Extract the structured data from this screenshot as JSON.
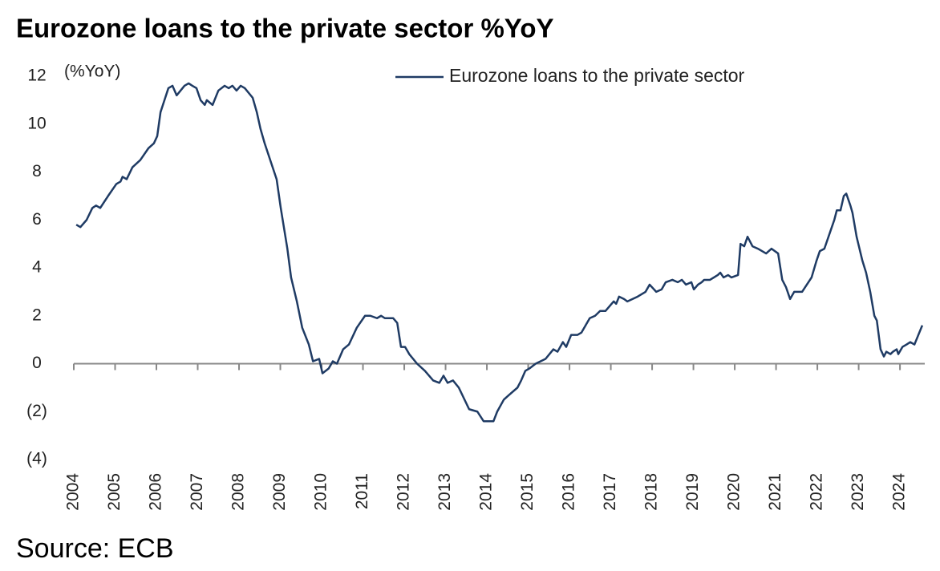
{
  "chart_data": {
    "type": "line",
    "title": "Eurozone loans to the private sector %YoY",
    "y_label": "(%YoY)",
    "source": "Source: ECB",
    "legend": "top-right",
    "xlim": [
      2004,
      2024.6
    ],
    "xticks": [
      2004,
      2005,
      2006,
      2007,
      2008,
      2009,
      2010,
      2011,
      2012,
      2013,
      2014,
      2015,
      2016,
      2017,
      2018,
      2019,
      2020,
      2021,
      2022,
      2023,
      2024
    ],
    "ylim": [
      -4,
      12
    ],
    "yticks": [
      {
        "value": -4,
        "label": "(4)"
      },
      {
        "value": -2,
        "label": "(2)"
      },
      0,
      2,
      4,
      6,
      8,
      10,
      12
    ],
    "grid": false,
    "x": [
      2004.06,
      2004.16,
      2004.31,
      2004.45,
      2004.54,
      2004.64,
      2004.83,
      2005.03,
      2005.13,
      2005.18,
      2005.28,
      2005.42,
      2005.61,
      2005.81,
      2005.94,
      2006.02,
      2006.1,
      2006.29,
      2006.39,
      2006.49,
      2006.68,
      2006.78,
      2006.87,
      2006.97,
      2007.07,
      2007.17,
      2007.22,
      2007.36,
      2007.5,
      2007.65,
      2007.75,
      2007.84,
      2007.94,
      2008.04,
      2008.14,
      2008.33,
      2008.43,
      2008.52,
      2008.62,
      2008.91,
      2009.01,
      2009.17,
      2009.26,
      2009.4,
      2009.53,
      2009.69,
      2009.79,
      2009.94,
      2010.02,
      2010.17,
      2010.27,
      2010.37,
      2010.52,
      2010.66,
      2010.85,
      2011.05,
      2011.18,
      2011.34,
      2011.44,
      2011.53,
      2011.73,
      2011.83,
      2011.92,
      2012.02,
      2012.12,
      2012.31,
      2012.5,
      2012.7,
      2012.85,
      2012.95,
      2013.05,
      2013.18,
      2013.32,
      2013.57,
      2013.77,
      2013.92,
      2014.16,
      2014.25,
      2014.41,
      2014.54,
      2014.74,
      2014.83,
      2014.93,
      2015.03,
      2015.18,
      2015.42,
      2015.61,
      2015.71,
      2015.84,
      2015.92,
      2016.04,
      2016.19,
      2016.29,
      2016.49,
      2016.62,
      2016.74,
      2016.87,
      2017.07,
      2017.13,
      2017.2,
      2017.32,
      2017.4,
      2017.65,
      2017.84,
      2017.94,
      2018.1,
      2018.23,
      2018.33,
      2018.49,
      2018.62,
      2018.72,
      2018.82,
      2018.95,
      2019.01,
      2019.11,
      2019.2,
      2019.26,
      2019.4,
      2019.59,
      2019.65,
      2019.73,
      2019.84,
      2019.92,
      2020.08,
      2020.14,
      2020.23,
      2020.31,
      2020.43,
      2020.56,
      2020.76,
      2020.89,
      2021.05,
      2021.15,
      2021.24,
      2021.34,
      2021.44,
      2021.63,
      2021.86,
      2021.98,
      2022.06,
      2022.17,
      2022.31,
      2022.41,
      2022.47,
      2022.56,
      2022.64,
      2022.7,
      2022.8,
      2022.85,
      2022.95,
      2023.09,
      2023.18,
      2023.28,
      2023.38,
      2023.44,
      2023.53,
      2023.61,
      2023.67,
      2023.77,
      2023.83,
      2023.92,
      2023.96,
      2024.06,
      2024.16,
      2024.25,
      2024.35,
      2024.54
    ],
    "series": [
      {
        "name": "Eurozone loans to the private sector",
        "color": "#1f3b64",
        "values": [
          5.8,
          5.7,
          6.0,
          6.5,
          6.6,
          6.5,
          7.0,
          7.5,
          7.6,
          7.8,
          7.7,
          8.2,
          8.5,
          9.0,
          9.2,
          9.5,
          10.5,
          11.5,
          11.6,
          11.2,
          11.6,
          11.7,
          11.6,
          11.5,
          11.0,
          10.8,
          11.0,
          10.8,
          11.4,
          11.6,
          11.5,
          11.6,
          11.4,
          11.6,
          11.5,
          11.1,
          10.5,
          9.8,
          9.2,
          7.7,
          6.5,
          4.8,
          3.6,
          2.6,
          1.5,
          0.8,
          0.1,
          0.2,
          -0.4,
          -0.2,
          0.1,
          0.0,
          0.6,
          0.8,
          1.5,
          2.0,
          2.0,
          1.9,
          2.0,
          1.9,
          1.9,
          1.7,
          0.7,
          0.7,
          0.4,
          0.0,
          -0.3,
          -0.7,
          -0.8,
          -0.5,
          -0.8,
          -0.7,
          -1.0,
          -1.9,
          -2.0,
          -2.4,
          -2.4,
          -2.0,
          -1.5,
          -1.3,
          -1.0,
          -0.7,
          -0.3,
          -0.2,
          0.0,
          0.2,
          0.6,
          0.5,
          0.9,
          0.7,
          1.2,
          1.2,
          1.3,
          1.9,
          2.0,
          2.2,
          2.2,
          2.6,
          2.5,
          2.8,
          2.7,
          2.6,
          2.8,
          3.0,
          3.3,
          3.0,
          3.1,
          3.4,
          3.5,
          3.4,
          3.5,
          3.3,
          3.4,
          3.1,
          3.3,
          3.4,
          3.5,
          3.5,
          3.7,
          3.8,
          3.6,
          3.7,
          3.6,
          3.7,
          5.0,
          4.9,
          5.3,
          4.9,
          4.8,
          4.6,
          4.8,
          4.6,
          3.5,
          3.2,
          2.7,
          3.0,
          3.0,
          3.6,
          4.3,
          4.7,
          4.8,
          5.5,
          6.0,
          6.4,
          6.4,
          7.0,
          7.1,
          6.6,
          6.3,
          5.3,
          4.3,
          3.8,
          3.0,
          2.0,
          1.8,
          0.6,
          0.3,
          0.5,
          0.4,
          0.5,
          0.6,
          0.4,
          0.7,
          0.8,
          0.9,
          0.8,
          1.6
        ]
      }
    ]
  }
}
